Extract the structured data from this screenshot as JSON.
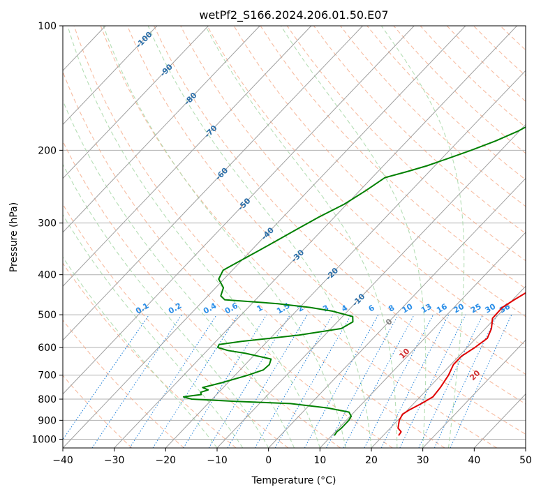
{
  "chart_data": {
    "type": "line",
    "title": "wetPf2_S166.2024.206.01.50.E07",
    "xlabel": "Temperature (°C)",
    "ylabel": "Pressure (hPa)",
    "xlim": [
      -40,
      50
    ],
    "ylim": [
      1050,
      100
    ],
    "y_scale": "log",
    "grid": true,
    "x_ticks": [
      -40,
      -30,
      -20,
      -10,
      0,
      10,
      20,
      30,
      40,
      50
    ],
    "y_ticks": [
      100,
      200,
      300,
      400,
      500,
      600,
      700,
      800,
      900,
      1000
    ],
    "colors": {
      "temperature": "#e00000",
      "dewpoint": "#008000",
      "isotherm": "#a0a0a0",
      "dry_adiabat": "#f4a582",
      "moist_adiabat": "#a8d8a8",
      "mixing_ratio": "#1e7fd8",
      "isotherm_label": "#2b6ea8",
      "mixing_label": "#2a8ee8",
      "dry_label": "#d03030"
    },
    "series": [
      {
        "id": "temperature",
        "p": [
          980,
          960,
          940,
          900,
          870,
          850,
          820,
          790,
          750,
          700,
          660,
          630,
          600,
          570,
          540,
          510,
          480,
          460,
          440,
          420,
          400,
          370,
          340,
          310,
          290,
          270,
          250,
          230,
          210,
          190,
          175,
          160,
          150,
          140,
          130,
          120,
          112,
          106,
          100
        ],
        "t": [
          23,
          22.8,
          21.5,
          20.3,
          19.8,
          20.3,
          21.5,
          22.5,
          22.2,
          21.5,
          20.5,
          20.5,
          21.5,
          22.2,
          21.2,
          19.5,
          19.4,
          20.3,
          21.4,
          21.3,
          20.8,
          19.8,
          18.8,
          17.5,
          15.4,
          12.8,
          10.0,
          7.2,
          4.3,
          1.3,
          -0.6,
          -2.2,
          -3.0,
          -3.8,
          -4.6,
          -4.7,
          -3.8,
          -2.3,
          -1.7
        ]
      },
      {
        "id": "dewpoint",
        "p": [
          980,
          960,
          940,
          920,
          900,
          880,
          860,
          840,
          820,
          810,
          800,
          790,
          780,
          770,
          760,
          750,
          730,
          700,
          680,
          660,
          640,
          620,
          610,
          600,
          590,
          580,
          560,
          540,
          520,
          505,
          490,
          480,
          470,
          460,
          450,
          430,
          410,
          390,
          370,
          350,
          330,
          310,
          290,
          270,
          250,
          233,
          225,
          218,
          210,
          200,
          190,
          180,
          170,
          160,
          150,
          140,
          130,
          120,
          112,
          106,
          100
        ],
        "t": [
          10.5,
          10.3,
          10.5,
          10.5,
          10.5,
          10.2,
          9.0,
          4.0,
          -4.0,
          -15.0,
          -24.0,
          -26.0,
          -23.0,
          -23.5,
          -22.5,
          -24.0,
          -21.2,
          -17.5,
          -15.5,
          -15.3,
          -16.0,
          -22.0,
          -26.0,
          -28.5,
          -28.8,
          -25.0,
          -15.0,
          -8.0,
          -7.0,
          -8.0,
          -13.0,
          -18.0,
          -25.0,
          -36.0,
          -37.5,
          -38.5,
          -41.0,
          -41.8,
          -40.2,
          -38.5,
          -36.8,
          -35.0,
          -33.0,
          -30.5,
          -28.8,
          -27.5,
          -24.2,
          -21.5,
          -19.0,
          -15.8,
          -12.8,
          -10.3,
          -8.4,
          -6.6,
          -5.5,
          -4.5,
          -4.3,
          -4.1,
          -3.4,
          -2.2,
          -1.0
        ]
      }
    ],
    "isotherm_labels": [
      "-100",
      "-90",
      "-80",
      "-70",
      "-60",
      "-50",
      "-40",
      "-30",
      "-20",
      "-10",
      "0"
    ],
    "mixing_ratio_labels": [
      "0.1",
      "0.2",
      "0.4",
      "0.6",
      "1",
      "1.5",
      "2",
      "3",
      "4",
      "6",
      "8",
      "10",
      "13",
      "16",
      "20",
      "25",
      "30",
      "36"
    ],
    "dry_adiabat_labels": [
      "10",
      "20",
      "30",
      "40"
    ]
  }
}
